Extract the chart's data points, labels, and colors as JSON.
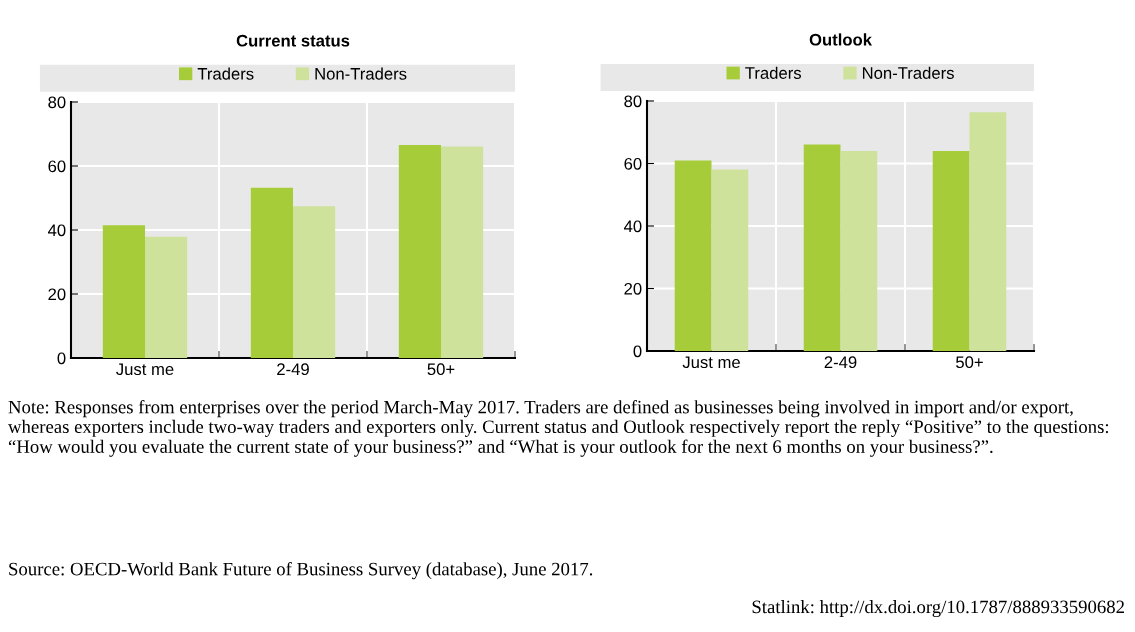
{
  "chart_data": [
    {
      "type": "bar",
      "title": "Current status",
      "categories": [
        "Just me",
        "2-49",
        "50+"
      ],
      "series": [
        {
          "name": "Traders",
          "color": "#a6cd39",
          "values": [
            41.5,
            53.2,
            66.6
          ]
        },
        {
          "name": "Non-Traders",
          "color": "#cfe29c",
          "values": [
            37.9,
            47.4,
            66.1
          ]
        }
      ],
      "ylim": [
        0,
        80
      ],
      "yticks": [
        0,
        20,
        40,
        60,
        80
      ],
      "grid": true,
      "legend": "top",
      "annotations": [
        "Note: Responses from enterprises over the period March-May 2017. Traders are defined as businesses being involved in import and/or export, whereas exporters include two-way traders and exporters only. Current status and Outlook respectively report the reply “Positive” to the questions: “How would you evaluate the current state of your business?” and “What is your outlook for the next 6 months on your business?”.",
        "Source: OECD-World Bank Future of Business Survey (database), June 2017.",
        "Statlink: http://dx.doi.org/10.1787/888933590682"
      ]
    },
    {
      "type": "bar",
      "title": "Outlook",
      "categories": [
        "Just me",
        "2-49",
        "50+"
      ],
      "series": [
        {
          "name": "Traders",
          "color": "#a6cd39",
          "values": [
            61.0,
            66.1,
            64.0
          ]
        },
        {
          "name": "Non-Traders",
          "color": "#cfe29c",
          "values": [
            58.1,
            64.0,
            76.4
          ]
        }
      ],
      "ylim": [
        0,
        80
      ],
      "yticks": [
        0,
        20,
        40,
        60,
        80
      ],
      "grid": true,
      "legend": "top"
    }
  ]
}
